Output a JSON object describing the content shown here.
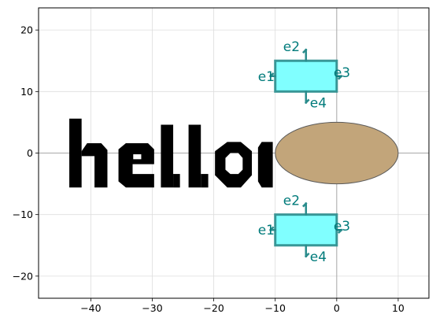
{
  "chart_data": {
    "type": "diagram",
    "xlim": [
      -48.5,
      15.0
    ],
    "ylim": [
      -23.6,
      23.6
    ],
    "x_ticks": [
      -40,
      -30,
      -20,
      -10,
      0,
      10
    ],
    "y_ticks": [
      -20,
      -10,
      0,
      10,
      20
    ],
    "x_tick_labels": [
      "−40",
      "−30",
      "−20",
      "−10",
      "0",
      "10"
    ],
    "y_tick_labels": [
      "−20",
      "−10",
      "0",
      "10",
      "20"
    ],
    "grid": true,
    "text_shape": {
      "text": "hello",
      "color": "#000000",
      "x_range": [
        -43.5,
        -10.5
      ],
      "y_range": [
        -5.6,
        5.6
      ]
    },
    "ellipse": {
      "cx": 0,
      "cy": 0,
      "rx": 10,
      "ry": 5,
      "fill": "#c2a57a",
      "stroke": "#5a5a5a"
    },
    "components": [
      {
        "x0": -10,
        "x1": 0,
        "y0": 10,
        "y1": 15,
        "fill": "#80ffff",
        "stroke": "#2a8c8c",
        "ports": [
          {
            "label": "e1",
            "x": -10,
            "y": 12.5,
            "dir": "west"
          },
          {
            "label": "e2",
            "x": -5,
            "y": 15,
            "dir": "north"
          },
          {
            "label": "e3",
            "x": 0,
            "y": 12.5,
            "dir": "east"
          },
          {
            "label": "e4",
            "x": -5,
            "y": 10,
            "dir": "south"
          }
        ]
      },
      {
        "x0": -10,
        "x1": 0,
        "y0": -15,
        "y1": -10,
        "fill": "#80ffff",
        "stroke": "#2a8c8c",
        "ports": [
          {
            "label": "e1",
            "x": -10,
            "y": -12.5,
            "dir": "west"
          },
          {
            "label": "e2",
            "x": -5,
            "y": -10,
            "dir": "north"
          },
          {
            "label": "e3",
            "x": 0,
            "y": -12.5,
            "dir": "east"
          },
          {
            "label": "e4",
            "x": -5,
            "y": -15,
            "dir": "south"
          }
        ]
      }
    ],
    "port_label_color": "#007b7b"
  }
}
